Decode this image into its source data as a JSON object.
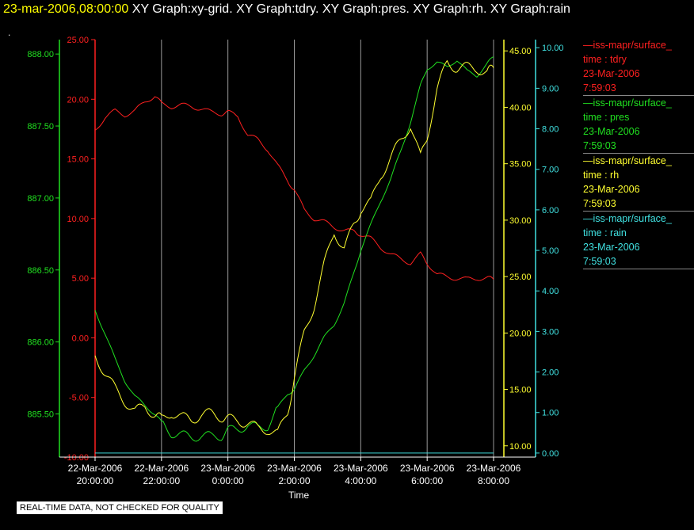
{
  "header": {
    "timestamp": "23-mar-2006,08:00:00",
    "graphs": "XY Graph:xy-grid.  XY Graph:tdry.  XY Graph:pres.  XY Graph:rh.  XY Graph:rain"
  },
  "dot": ".",
  "quality_note": "REAL-TIME DATA, NOT CHECKED FOR QUALITY",
  "colors": {
    "tdry": "#ff2020",
    "pres": "#20e020",
    "rh": "#ffff30",
    "rain": "#40e0e0",
    "grid": "#999999"
  },
  "legend": [
    {
      "name": "—iss-mapr/surface_",
      "var": "time : tdry",
      "date": "23-Mar-2006",
      "time": "7:59:03",
      "color": "#ff2020"
    },
    {
      "name": "—iss-mapr/surface_",
      "var": "time : pres",
      "date": "23-Mar-2006",
      "time": "7:59:03",
      "color": "#20e020"
    },
    {
      "name": "—iss-mapr/surface_",
      "var": "time : rh",
      "date": "23-Mar-2006",
      "time": "7:59:03",
      "color": "#ffff30"
    },
    {
      "name": "—iss-mapr/surface_",
      "var": "time : rain",
      "date": "23-Mar-2006",
      "time": "7:59:03",
      "color": "#40e0e0"
    }
  ],
  "chart_data": {
    "type": "line",
    "xlabel": "Time",
    "x_ticks": [
      {
        "date": "22-Mar-2006",
        "time": "20:00:00",
        "hour": 0
      },
      {
        "date": "22-Mar-2006",
        "time": "22:00:00",
        "hour": 2
      },
      {
        "date": "23-Mar-2006",
        "time": "0:00:00",
        "hour": 4
      },
      {
        "date": "23-Mar-2006",
        "time": "2:00:00",
        "hour": 6
      },
      {
        "date": "23-Mar-2006",
        "time": "4:00:00",
        "hour": 8
      },
      {
        "date": "23-Mar-2006",
        "time": "6:00:00",
        "hour": 10
      },
      {
        "date": "23-Mar-2006",
        "time": "8:00:00",
        "hour": 12
      }
    ],
    "xlim": [
      0,
      12
    ],
    "grid": "vertical",
    "axes": {
      "tdry": {
        "range": [
          -10,
          25
        ],
        "ticks": [
          "-10.00",
          "-5.00",
          "0.00",
          "5.00",
          "10.00",
          "15.00",
          "20.00",
          "25.00"
        ]
      },
      "pres": {
        "range": [
          885.2,
          888.1
        ],
        "ticks": [
          "885.50",
          "886.00",
          "886.50",
          "887.00",
          "887.50",
          "888.00"
        ]
      },
      "rh": {
        "range": [
          9,
          46
        ],
        "ticks": [
          "10.00",
          "15.00",
          "20.00",
          "25.00",
          "30.00",
          "35.00",
          "40.00",
          "45.00"
        ]
      },
      "rain": {
        "range": [
          -0.1,
          10.2
        ],
        "ticks": [
          "0.00",
          "1.00",
          "2.00",
          "3.00",
          "4.00",
          "5.00",
          "6.00",
          "7.00",
          "8.00",
          "9.00",
          "10.00"
        ]
      }
    },
    "series": [
      {
        "name": "tdry",
        "x": [
          0,
          0.3,
          0.6,
          0.9,
          1.2,
          1.5,
          1.8,
          2.0,
          2.3,
          2.6,
          2.9,
          3.2,
          3.5,
          3.8,
          4.0,
          4.3,
          4.6,
          4.9,
          5.2,
          5.5,
          5.8,
          6.0,
          6.3,
          6.6,
          6.9,
          7.2,
          7.5,
          7.8,
          8.0,
          8.3,
          8.6,
          8.9,
          9.2,
          9.5,
          9.8,
          10.0,
          10.3,
          10.6,
          10.9,
          11.2,
          11.5,
          11.8,
          12.0
        ],
        "values": [
          17.4,
          18.5,
          19.0,
          18.7,
          19.0,
          19.8,
          20.3,
          19.6,
          19.4,
          19.5,
          19.4,
          19.2,
          18.9,
          18.8,
          18.9,
          18.6,
          17.0,
          16.6,
          15.8,
          14.4,
          13.2,
          12.4,
          10.7,
          10.0,
          9.7,
          9.3,
          9.0,
          8.9,
          8.7,
          8.3,
          7.6,
          7.0,
          6.6,
          6.3,
          7.0,
          6.3,
          5.3,
          5.1,
          5.0,
          4.9,
          5.0,
          5.0,
          4.9
        ]
      },
      {
        "name": "pres",
        "x": [
          0,
          0.3,
          0.6,
          0.9,
          1.2,
          1.5,
          1.8,
          2.0,
          2.3,
          2.6,
          2.9,
          3.2,
          3.5,
          3.8,
          4.0,
          4.3,
          4.6,
          4.9,
          5.2,
          5.5,
          5.8,
          6.0,
          6.3,
          6.6,
          6.9,
          7.2,
          7.5,
          7.8,
          8.0,
          8.3,
          8.6,
          8.9,
          9.2,
          9.5,
          9.8,
          10.0,
          10.3,
          10.6,
          10.9,
          11.2,
          11.5,
          11.8,
          12.0
        ],
        "values": [
          886.22,
          886.06,
          885.88,
          885.73,
          885.62,
          885.56,
          885.5,
          885.44,
          885.37,
          885.35,
          885.34,
          885.35,
          885.34,
          885.35,
          885.38,
          885.4,
          885.42,
          885.4,
          885.42,
          885.54,
          885.64,
          885.67,
          885.8,
          885.91,
          886.03,
          886.12,
          886.27,
          886.48,
          886.64,
          886.81,
          886.98,
          887.13,
          887.32,
          887.53,
          887.78,
          887.9,
          887.94,
          887.91,
          887.96,
          887.88,
          887.85,
          887.93,
          887.98
        ]
      },
      {
        "name": "rh",
        "x": [
          0,
          0.3,
          0.6,
          0.9,
          1.2,
          1.5,
          1.8,
          2.0,
          2.3,
          2.6,
          2.9,
          3.2,
          3.5,
          3.8,
          4.0,
          4.3,
          4.6,
          4.9,
          5.2,
          5.5,
          5.8,
          6.0,
          6.3,
          6.6,
          6.9,
          7.2,
          7.5,
          7.8,
          8.0,
          8.3,
          8.6,
          8.9,
          9.2,
          9.5,
          9.8,
          10.0,
          10.3,
          10.6,
          10.9,
          11.2,
          11.5,
          11.8,
          12.0
        ],
        "values": [
          18.0,
          16.5,
          15.0,
          14.0,
          13.0,
          13.5,
          12.8,
          12.3,
          13.0,
          12.5,
          12.3,
          12.8,
          12.8,
          12.6,
          12.3,
          12.3,
          12.0,
          11.5,
          11.5,
          11.0,
          13.0,
          16.0,
          20.0,
          22.5,
          26.0,
          29.0,
          27.5,
          29.5,
          31.0,
          31.5,
          34.0,
          35.5,
          37.0,
          38.5,
          35.5,
          37.5,
          41.5,
          44.0,
          43.5,
          43.5,
          43.5,
          43.0,
          43.5
        ]
      },
      {
        "name": "rain",
        "x": [
          0,
          12
        ],
        "values": [
          0,
          0
        ]
      }
    ]
  }
}
